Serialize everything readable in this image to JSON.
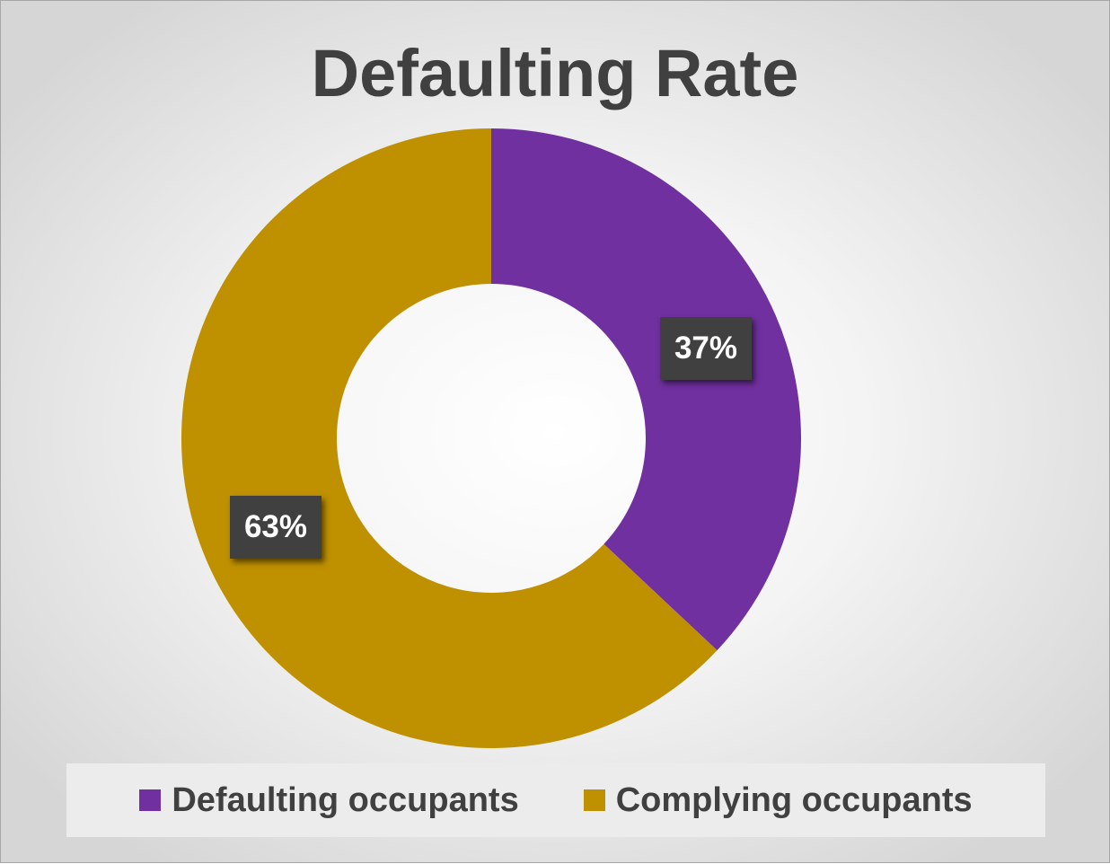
{
  "chart_data": {
    "type": "pie",
    "variant": "donut",
    "title": "Defaulting Rate",
    "categories": [
      "Defaulting occupants",
      "Complying occupants"
    ],
    "values": [
      37,
      63
    ],
    "value_labels": [
      "37%",
      "63%"
    ],
    "colors": [
      "#7030a0",
      "#bf9000"
    ],
    "legend": "bottom"
  }
}
